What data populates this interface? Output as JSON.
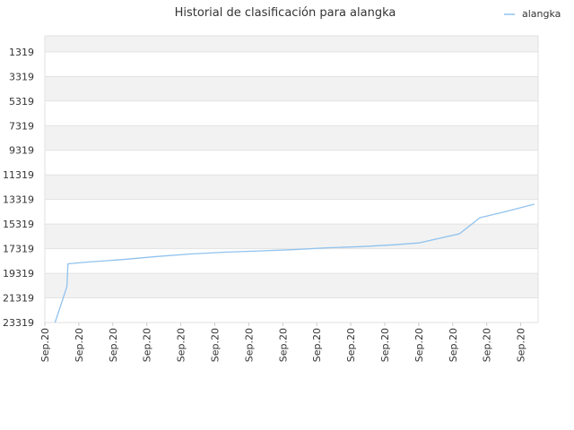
{
  "chart_data": {
    "type": "line",
    "title": "Historial de clasificación para alangka",
    "xlabel": "",
    "ylabel": "",
    "y_reversed": true,
    "ylim": [
      1319,
      23319
    ],
    "y_ticks": [
      "1319",
      "3319",
      "5319",
      "7319",
      "9319",
      "11319",
      "13319",
      "15319",
      "17319",
      "19319",
      "21319",
      "23319"
    ],
    "x_ticks": [
      "Sep.20",
      "Sep.20",
      "Sep.20",
      "Sep.20",
      "Sep.20",
      "Sep.20",
      "Sep.20",
      "Sep.20",
      "Sep.20",
      "Sep.20",
      "Sep.20",
      "Sep.20",
      "Sep.20",
      "Sep.20",
      "Sep.20"
    ],
    "grid": true,
    "legend_position": "top-right",
    "series": [
      {
        "name": "alangka",
        "color": "#90c2ee",
        "x": [
          0.3,
          0.65,
          0.68,
          1.3,
          2.3,
          3.3,
          4.3,
          5.3,
          6.3,
          7.3,
          8.3,
          9.3,
          10.3,
          11.0,
          12.2,
          12.8,
          13.5,
          14.4
        ],
        "y": [
          23319,
          20400,
          18550,
          18400,
          18200,
          17950,
          17750,
          17600,
          17500,
          17400,
          17250,
          17150,
          17000,
          16850,
          16100,
          14800,
          14350,
          13700
        ]
      }
    ]
  }
}
